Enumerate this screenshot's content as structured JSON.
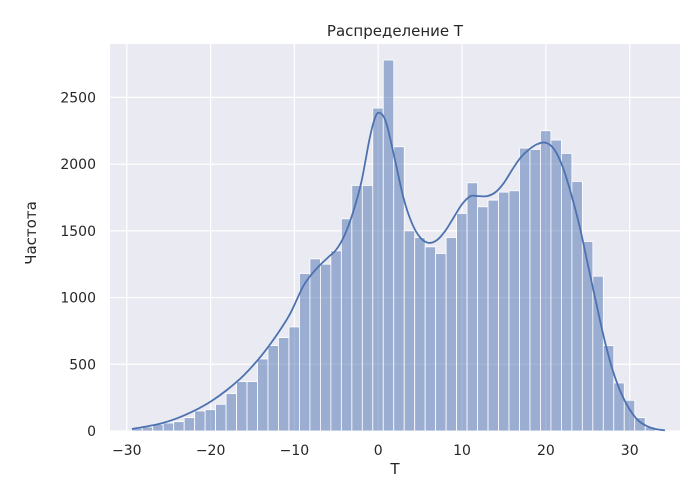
{
  "chart_data": {
    "type": "bar",
    "title": "Распределение T",
    "xlabel": "T",
    "ylabel": "Частота",
    "xlim": [
      -32,
      36
    ],
    "ylim": [
      0,
      2900
    ],
    "xticks": [
      -30,
      -20,
      -10,
      0,
      10,
      20,
      30
    ],
    "yticks": [
      0,
      500,
      1000,
      1500,
      2000,
      2500
    ],
    "xtick_labels": [
      "−30",
      "−20",
      "−10",
      "0",
      "10",
      "20",
      "30"
    ],
    "ytick_labels": [
      "0",
      "500",
      "1000",
      "1500",
      "2000",
      "2500"
    ],
    "grid": true,
    "bin_width": 1.25,
    "bins": [
      {
        "x0": -29.4,
        "value": 20
      },
      {
        "x0": -28.15,
        "value": 30
      },
      {
        "x0": -26.9,
        "value": 50
      },
      {
        "x0": -25.65,
        "value": 60
      },
      {
        "x0": -24.4,
        "value": 70
      },
      {
        "x0": -23.15,
        "value": 100
      },
      {
        "x0": -21.9,
        "value": 150
      },
      {
        "x0": -20.65,
        "value": 160
      },
      {
        "x0": -19.4,
        "value": 200
      },
      {
        "x0": -18.15,
        "value": 280
      },
      {
        "x0": -16.9,
        "value": 370
      },
      {
        "x0": -15.65,
        "value": 370
      },
      {
        "x0": -14.4,
        "value": 540
      },
      {
        "x0": -13.15,
        "value": 640
      },
      {
        "x0": -11.9,
        "value": 700
      },
      {
        "x0": -10.65,
        "value": 780
      },
      {
        "x0": -9.4,
        "value": 1180
      },
      {
        "x0": -8.15,
        "value": 1290
      },
      {
        "x0": -6.9,
        "value": 1250
      },
      {
        "x0": -5.65,
        "value": 1350
      },
      {
        "x0": -4.4,
        "value": 1590
      },
      {
        "x0": -3.15,
        "value": 1840
      },
      {
        "x0": -1.9,
        "value": 1840
      },
      {
        "x0": -0.65,
        "value": 2420
      },
      {
        "x0": 0.6,
        "value": 2780
      },
      {
        "x0": 1.85,
        "value": 2130
      },
      {
        "x0": 3.1,
        "value": 1500
      },
      {
        "x0": 4.35,
        "value": 1450
      },
      {
        "x0": 5.6,
        "value": 1380
      },
      {
        "x0": 6.85,
        "value": 1330
      },
      {
        "x0": 8.1,
        "value": 1450
      },
      {
        "x0": 9.35,
        "value": 1630
      },
      {
        "x0": 10.6,
        "value": 1860
      },
      {
        "x0": 11.85,
        "value": 1680
      },
      {
        "x0": 13.1,
        "value": 1730
      },
      {
        "x0": 14.35,
        "value": 1790
      },
      {
        "x0": 15.6,
        "value": 1800
      },
      {
        "x0": 16.85,
        "value": 2120
      },
      {
        "x0": 18.1,
        "value": 2110
      },
      {
        "x0": 19.35,
        "value": 2250
      },
      {
        "x0": 20.6,
        "value": 2180
      },
      {
        "x0": 21.85,
        "value": 2080
      },
      {
        "x0": 23.1,
        "value": 1870
      },
      {
        "x0": 24.35,
        "value": 1420
      },
      {
        "x0": 25.6,
        "value": 1160
      },
      {
        "x0": 26.85,
        "value": 640
      },
      {
        "x0": 28.1,
        "value": 360
      },
      {
        "x0": 29.35,
        "value": 230
      },
      {
        "x0": 30.6,
        "value": 100
      },
      {
        "x0": 31.85,
        "value": 30
      }
    ],
    "kde": [
      [
        -29.4,
        15
      ],
      [
        -28,
        30
      ],
      [
        -26,
        55
      ],
      [
        -24,
        95
      ],
      [
        -22,
        150
      ],
      [
        -20,
        220
      ],
      [
        -18,
        310
      ],
      [
        -16,
        420
      ],
      [
        -14,
        560
      ],
      [
        -12,
        730
      ],
      [
        -10.5,
        880
      ],
      [
        -9,
        1080
      ],
      [
        -8,
        1170
      ],
      [
        -7,
        1240
      ],
      [
        -6,
        1300
      ],
      [
        -5,
        1360
      ],
      [
        -4,
        1470
      ],
      [
        -3,
        1640
      ],
      [
        -2,
        1870
      ],
      [
        -1,
        2200
      ],
      [
        -0.3,
        2360
      ],
      [
        0.3,
        2380
      ],
      [
        1,
        2300
      ],
      [
        2,
        2030
      ],
      [
        3,
        1750
      ],
      [
        4,
        1560
      ],
      [
        5,
        1450
      ],
      [
        6,
        1410
      ],
      [
        7,
        1430
      ],
      [
        8,
        1500
      ],
      [
        9,
        1600
      ],
      [
        10,
        1700
      ],
      [
        11,
        1760
      ],
      [
        12,
        1760
      ],
      [
        13,
        1760
      ],
      [
        14,
        1790
      ],
      [
        15,
        1860
      ],
      [
        16,
        1960
      ],
      [
        17,
        2050
      ],
      [
        18,
        2110
      ],
      [
        19,
        2150
      ],
      [
        20,
        2160
      ],
      [
        21,
        2110
      ],
      [
        22,
        1980
      ],
      [
        23,
        1780
      ],
      [
        24,
        1540
      ],
      [
        25,
        1250
      ],
      [
        26,
        960
      ],
      [
        27,
        680
      ],
      [
        28,
        450
      ],
      [
        29,
        280
      ],
      [
        30,
        160
      ],
      [
        31,
        80
      ],
      [
        32,
        38
      ],
      [
        33,
        16
      ],
      [
        34.2,
        5
      ]
    ],
    "colors": {
      "bar_fill": "#4c72b0",
      "bar_opacity": 0.5,
      "bar_edge": "#ffffff",
      "kde_line": "#4c72b0",
      "plot_background": "#eaeaf2",
      "grid": "#ffffff"
    }
  }
}
